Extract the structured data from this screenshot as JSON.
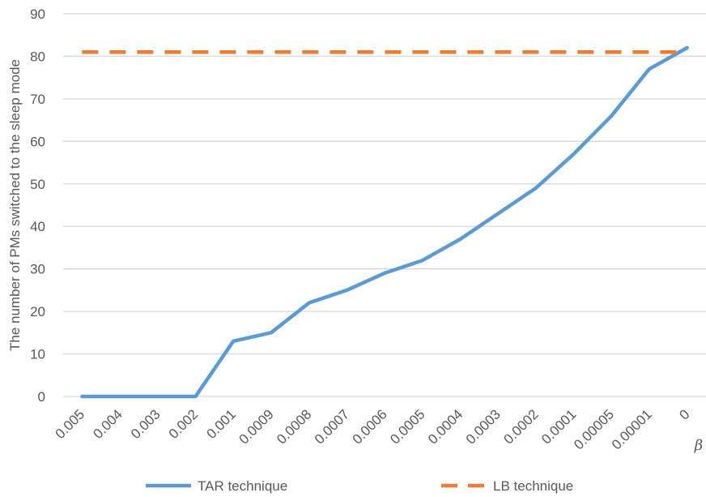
{
  "chart_data": {
    "type": "line",
    "title": "",
    "ylabel": "The number of PMs switched to the sleep mode",
    "xlabel": "β",
    "ylim": [
      0,
      90
    ],
    "yticks": [
      0,
      10,
      20,
      30,
      40,
      50,
      60,
      70,
      80,
      90
    ],
    "grid": "horizontal",
    "legend_position": "bottom",
    "categories": [
      "0.005",
      "0.004",
      "0.003",
      "0.002",
      "0.001",
      "0.0009",
      "0.0008",
      "0.0007",
      "0.0006",
      "0.0005",
      "0.0004",
      "0.0003",
      "0.0002",
      "0.0001",
      "0.00005",
      "0.00001",
      "0"
    ],
    "series": [
      {
        "name": "TAR technique",
        "style": "solid",
        "color": "#5B9BD5",
        "values": [
          0,
          0,
          0,
          0,
          13,
          15,
          22,
          25,
          29,
          32,
          37,
          43,
          49,
          57,
          66,
          77,
          82
        ]
      },
      {
        "name": "LB technique",
        "style": "dashed",
        "color": "#ED7D31",
        "values": [
          81,
          81,
          81,
          81,
          81,
          81,
          81,
          81,
          81,
          81,
          81,
          81,
          81,
          81,
          81,
          81,
          81
        ]
      }
    ]
  },
  "colors": {
    "grid": "#D9D9D9",
    "text": "#595959"
  }
}
